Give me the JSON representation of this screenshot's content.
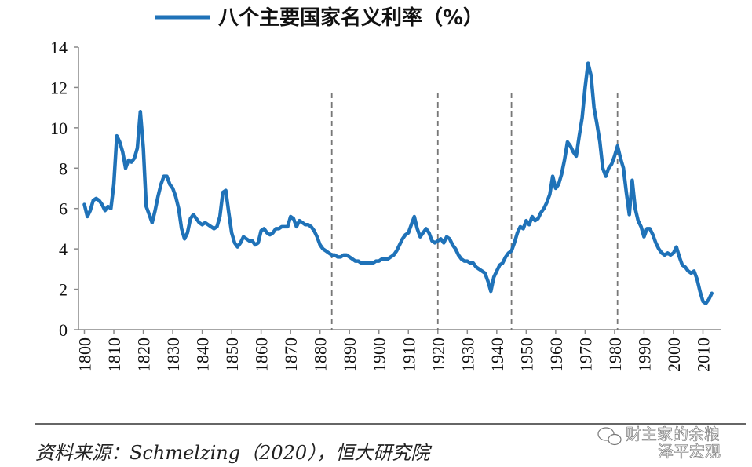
{
  "chart_data": {
    "type": "line",
    "title": "",
    "legend": {
      "position": "top-center"
    },
    "series": [
      {
        "name": "八个主要国家名义利率（%）",
        "color": "#1f72b8",
        "points": [
          [
            1800,
            6.2
          ],
          [
            1801,
            5.6
          ],
          [
            1802,
            5.9
          ],
          [
            1803,
            6.4
          ],
          [
            1804,
            6.5
          ],
          [
            1805,
            6.4
          ],
          [
            1806,
            6.2
          ],
          [
            1807,
            5.9
          ],
          [
            1808,
            6.1
          ],
          [
            1809,
            6.0
          ],
          [
            1810,
            7.2
          ],
          [
            1811,
            9.6
          ],
          [
            1812,
            9.3
          ],
          [
            1813,
            8.8
          ],
          [
            1814,
            8.0
          ],
          [
            1815,
            8.4
          ],
          [
            1816,
            8.3
          ],
          [
            1817,
            8.5
          ],
          [
            1818,
            9.0
          ],
          [
            1819,
            10.8
          ],
          [
            1820,
            9.0
          ],
          [
            1821,
            6.1
          ],
          [
            1822,
            5.7
          ],
          [
            1823,
            5.3
          ],
          [
            1824,
            5.9
          ],
          [
            1825,
            6.6
          ],
          [
            1826,
            7.2
          ],
          [
            1827,
            7.6
          ],
          [
            1828,
            7.6
          ],
          [
            1829,
            7.2
          ],
          [
            1830,
            7.0
          ],
          [
            1831,
            6.6
          ],
          [
            1832,
            6.0
          ],
          [
            1833,
            5.0
          ],
          [
            1834,
            4.5
          ],
          [
            1835,
            4.8
          ],
          [
            1836,
            5.5
          ],
          [
            1837,
            5.7
          ],
          [
            1838,
            5.5
          ],
          [
            1839,
            5.3
          ],
          [
            1840,
            5.2
          ],
          [
            1841,
            5.3
          ],
          [
            1842,
            5.2
          ],
          [
            1843,
            5.1
          ],
          [
            1844,
            5.0
          ],
          [
            1845,
            5.1
          ],
          [
            1846,
            5.6
          ],
          [
            1847,
            6.8
          ],
          [
            1848,
            6.9
          ],
          [
            1849,
            5.8
          ],
          [
            1850,
            4.8
          ],
          [
            1851,
            4.3
          ],
          [
            1852,
            4.1
          ],
          [
            1853,
            4.3
          ],
          [
            1854,
            4.6
          ],
          [
            1855,
            4.5
          ],
          [
            1856,
            4.4
          ],
          [
            1857,
            4.4
          ],
          [
            1858,
            4.2
          ],
          [
            1859,
            4.3
          ],
          [
            1860,
            4.9
          ],
          [
            1861,
            5.0
          ],
          [
            1862,
            4.8
          ],
          [
            1863,
            4.7
          ],
          [
            1864,
            4.8
          ],
          [
            1865,
            5.0
          ],
          [
            1866,
            5.0
          ],
          [
            1867,
            5.1
          ],
          [
            1868,
            5.1
          ],
          [
            1869,
            5.1
          ],
          [
            1870,
            5.6
          ],
          [
            1871,
            5.5
          ],
          [
            1872,
            5.1
          ],
          [
            1873,
            5.4
          ],
          [
            1874,
            5.3
          ],
          [
            1875,
            5.2
          ],
          [
            1876,
            5.2
          ],
          [
            1877,
            5.1
          ],
          [
            1878,
            4.9
          ],
          [
            1879,
            4.6
          ],
          [
            1880,
            4.2
          ],
          [
            1881,
            4.0
          ],
          [
            1882,
            3.9
          ],
          [
            1883,
            3.8
          ],
          [
            1884,
            3.7
          ],
          [
            1885,
            3.7
          ],
          [
            1886,
            3.6
          ],
          [
            1887,
            3.6
          ],
          [
            1888,
            3.7
          ],
          [
            1889,
            3.7
          ],
          [
            1890,
            3.6
          ],
          [
            1891,
            3.5
          ],
          [
            1892,
            3.4
          ],
          [
            1893,
            3.4
          ],
          [
            1894,
            3.3
          ],
          [
            1895,
            3.3
          ],
          [
            1896,
            3.3
          ],
          [
            1897,
            3.3
          ],
          [
            1898,
            3.3
          ],
          [
            1899,
            3.4
          ],
          [
            1900,
            3.4
          ],
          [
            1901,
            3.5
          ],
          [
            1902,
            3.5
          ],
          [
            1903,
            3.5
          ],
          [
            1904,
            3.6
          ],
          [
            1905,
            3.7
          ],
          [
            1906,
            3.9
          ],
          [
            1907,
            4.2
          ],
          [
            1908,
            4.5
          ],
          [
            1909,
            4.7
          ],
          [
            1910,
            4.8
          ],
          [
            1911,
            5.2
          ],
          [
            1912,
            5.6
          ],
          [
            1913,
            5.0
          ],
          [
            1914,
            4.6
          ],
          [
            1915,
            4.8
          ],
          [
            1916,
            5.0
          ],
          [
            1917,
            4.8
          ],
          [
            1918,
            4.4
          ],
          [
            1919,
            4.3
          ],
          [
            1920,
            4.4
          ],
          [
            1921,
            4.5
          ],
          [
            1922,
            4.3
          ],
          [
            1923,
            4.6
          ],
          [
            1924,
            4.5
          ],
          [
            1925,
            4.2
          ],
          [
            1926,
            4.0
          ],
          [
            1927,
            3.7
          ],
          [
            1928,
            3.5
          ],
          [
            1929,
            3.4
          ],
          [
            1930,
            3.4
          ],
          [
            1931,
            3.3
          ],
          [
            1932,
            3.3
          ],
          [
            1933,
            3.1
          ],
          [
            1934,
            3.0
          ],
          [
            1935,
            2.9
          ],
          [
            1936,
            2.8
          ],
          [
            1937,
            2.4
          ],
          [
            1938,
            1.9
          ],
          [
            1939,
            2.6
          ],
          [
            1940,
            2.9
          ],
          [
            1941,
            3.2
          ],
          [
            1942,
            3.3
          ],
          [
            1943,
            3.6
          ],
          [
            1944,
            3.8
          ],
          [
            1945,
            3.9
          ],
          [
            1946,
            4.3
          ],
          [
            1947,
            4.8
          ],
          [
            1948,
            5.1
          ],
          [
            1949,
            5.0
          ],
          [
            1950,
            5.4
          ],
          [
            1951,
            5.2
          ],
          [
            1952,
            5.6
          ],
          [
            1953,
            5.4
          ],
          [
            1954,
            5.5
          ],
          [
            1955,
            5.8
          ],
          [
            1956,
            6.0
          ],
          [
            1957,
            6.3
          ],
          [
            1958,
            6.7
          ],
          [
            1959,
            7.6
          ],
          [
            1960,
            7.0
          ],
          [
            1961,
            7.2
          ],
          [
            1962,
            7.7
          ],
          [
            1963,
            8.4
          ],
          [
            1964,
            9.3
          ],
          [
            1965,
            9.1
          ],
          [
            1966,
            8.8
          ],
          [
            1967,
            8.6
          ],
          [
            1968,
            9.6
          ],
          [
            1969,
            10.5
          ],
          [
            1970,
            12.0
          ],
          [
            1971,
            13.2
          ],
          [
            1972,
            12.6
          ],
          [
            1973,
            11.0
          ],
          [
            1974,
            10.2
          ],
          [
            1975,
            9.3
          ],
          [
            1976,
            8.0
          ],
          [
            1977,
            7.6
          ],
          [
            1978,
            8.0
          ],
          [
            1979,
            8.2
          ],
          [
            1980,
            8.6
          ],
          [
            1981,
            9.1
          ],
          [
            1982,
            8.5
          ],
          [
            1983,
            8.0
          ],
          [
            1984,
            6.8
          ],
          [
            1985,
            5.7
          ],
          [
            1986,
            7.4
          ],
          [
            1987,
            6.0
          ],
          [
            1988,
            5.4
          ],
          [
            1989,
            5.1
          ],
          [
            1990,
            4.6
          ],
          [
            1991,
            5.0
          ],
          [
            1992,
            5.0
          ],
          [
            1993,
            4.7
          ],
          [
            1994,
            4.3
          ],
          [
            1995,
            4.0
          ],
          [
            1996,
            3.8
          ],
          [
            1997,
            3.7
          ],
          [
            1998,
            3.8
          ],
          [
            1999,
            3.7
          ],
          [
            2000,
            3.8
          ],
          [
            2001,
            4.1
          ],
          [
            2002,
            3.6
          ],
          [
            2003,
            3.2
          ],
          [
            2004,
            3.1
          ],
          [
            2005,
            2.9
          ],
          [
            2006,
            2.8
          ],
          [
            2007,
            2.9
          ],
          [
            2008,
            2.5
          ],
          [
            2009,
            1.9
          ],
          [
            2010,
            1.4
          ],
          [
            2011,
            1.3
          ],
          [
            2012,
            1.5
          ],
          [
            2013,
            1.8
          ]
        ]
      }
    ],
    "x": {
      "ticks": [
        1800,
        1810,
        1820,
        1830,
        1840,
        1850,
        1860,
        1870,
        1880,
        1890,
        1900,
        1910,
        1920,
        1930,
        1940,
        1950,
        1960,
        1970,
        1980,
        1990,
        2000,
        2010
      ],
      "range": [
        1798,
        2016
      ]
    },
    "y": {
      "ticks": [
        0,
        2,
        4,
        6,
        8,
        10,
        12,
        14
      ],
      "range": [
        0,
        14
      ]
    },
    "grid": false,
    "vlines": [
      1884,
      1920,
      1945,
      1981
    ]
  },
  "source_text": "资料来源：Schmelzing（2020），恒大研究院",
  "watermark": {
    "line1": "财主家的余粮",
    "line2": "泽平宏观"
  }
}
